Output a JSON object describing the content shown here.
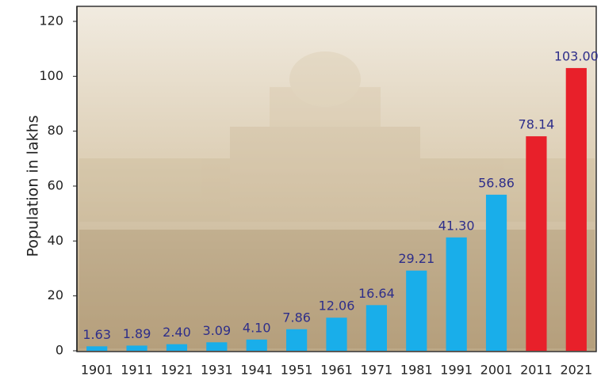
{
  "chart_data": {
    "type": "bar",
    "y_label": "Population in lakhs",
    "categories": [
      "1901",
      "1911",
      "1921",
      "1931",
      "1941",
      "1951",
      "1961",
      "1971",
      "1981",
      "1991",
      "2001",
      "2011",
      "2021"
    ],
    "values": [
      1.63,
      1.89,
      2.4,
      3.09,
      4.1,
      7.86,
      12.06,
      16.64,
      29.21,
      41.3,
      56.86,
      78.14,
      103
    ],
    "value_labels": [
      "1.63",
      "1.89",
      "2.40",
      "3.09",
      "4.10",
      "7.86",
      "12.06",
      "16.64",
      "29.21",
      "41.30",
      "56.86",
      "78.14",
      "103.00"
    ],
    "colors": [
      "#19aeea",
      "#19aeea",
      "#19aeea",
      "#19aeea",
      "#19aeea",
      "#19aeea",
      "#19aeea",
      "#19aeea",
      "#19aeea",
      "#19aeea",
      "#19aeea",
      "#e8202a",
      "#e8202a"
    ],
    "ylim": [
      0,
      120
    ],
    "yticks": [
      0,
      20,
      40,
      60,
      80,
      100,
      120
    ]
  }
}
